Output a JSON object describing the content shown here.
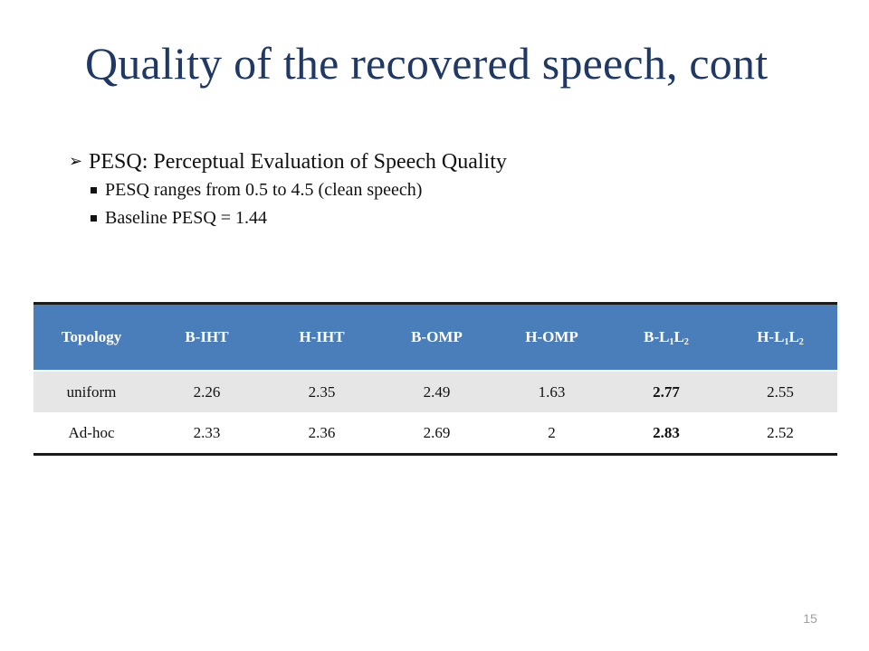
{
  "slide": {
    "title": "Quality of the recovered speech, cont",
    "page_number": "15"
  },
  "bullets": {
    "main": {
      "icon": "arrow-bullet-icon",
      "text": "PESQ: Perceptual Evaluation of Speech Quality"
    },
    "sub": [
      {
        "icon": "square-bullet-icon",
        "text": "PESQ ranges from 0.5 to 4.5 (clean speech)"
      },
      {
        "icon": "square-bullet-icon",
        "text": "Baseline PESQ = 1.44"
      }
    ]
  },
  "table": {
    "colors": {
      "header_bg": "#4a7ebb",
      "row_alt_bg": "#e6e6e6",
      "header_text": "#ffffff"
    },
    "headers": [
      {
        "text": "Topology"
      },
      {
        "text": "B-IHT"
      },
      {
        "text": "H-IHT"
      },
      {
        "text": "B-OMP"
      },
      {
        "text": "H-OMP"
      },
      {
        "prefix": "B-L",
        "sub1": "1",
        "mid": "L",
        "sub2": "2"
      },
      {
        "prefix": "H-L",
        "sub1": "1",
        "mid": "L",
        "sub2": "2"
      }
    ],
    "rows": [
      {
        "cells": [
          "uniform",
          "2.26",
          "2.35",
          "2.49",
          "1.63",
          "2.77",
          "2.55"
        ],
        "bold_index": 5
      },
      {
        "cells": [
          "Ad-hoc",
          "2.33",
          "2.36",
          "2.69",
          "2",
          "2.83",
          "2.52"
        ],
        "bold_index": 5
      }
    ]
  }
}
